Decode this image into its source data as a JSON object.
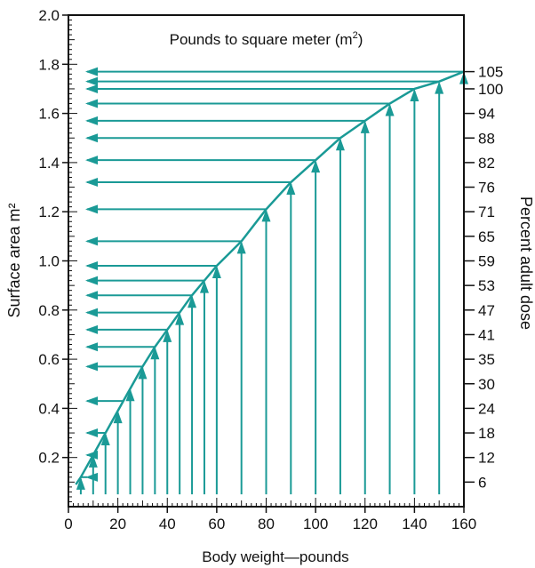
{
  "chart_data": {
    "type": "line",
    "title": "Pounds to square meter (m",
    "title_superscript": "2",
    "title_close": ")",
    "xlabel": "Body weight—pounds",
    "ylabel": "Surface area m²",
    "y2label": "Percent adult dose",
    "xlim": [
      0,
      160
    ],
    "ylim": [
      0,
      2.0
    ],
    "x_ticks": [
      0,
      20,
      40,
      60,
      80,
      100,
      120,
      140,
      160
    ],
    "y_ticks": [
      "0.2",
      "0.4",
      "0.6",
      "0.8",
      "1.0",
      "1.2",
      "1.4",
      "1.6",
      "1.8",
      "2.0"
    ],
    "y2_ticks": [
      {
        "label": "6",
        "y": 0.1
      },
      {
        "label": "12",
        "y": 0.2
      },
      {
        "label": "18",
        "y": 0.3
      },
      {
        "label": "24",
        "y": 0.4
      },
      {
        "label": "30",
        "y": 0.5
      },
      {
        "label": "35",
        "y": 0.6
      },
      {
        "label": "41",
        "y": 0.7
      },
      {
        "label": "47",
        "y": 0.8
      },
      {
        "label": "53",
        "y": 0.9
      },
      {
        "label": "59",
        "y": 1.0
      },
      {
        "label": "65",
        "y": 1.1
      },
      {
        "label": "71",
        "y": 1.2
      },
      {
        "label": "76",
        "y": 1.3
      },
      {
        "label": "82",
        "y": 1.4
      },
      {
        "label": "88",
        "y": 1.5
      },
      {
        "label": "94",
        "y": 1.6
      },
      {
        "label": "100",
        "y": 1.7
      },
      {
        "label": "105",
        "y": 1.77
      }
    ],
    "series": [
      {
        "x": [
          3,
          5,
          10,
          15,
          20,
          25,
          30,
          35,
          40,
          45,
          50,
          55,
          60,
          70,
          80,
          90,
          100,
          110,
          120,
          130,
          140,
          150,
          160
        ],
        "y": [
          0.09,
          0.12,
          0.21,
          0.3,
          0.39,
          0.48,
          0.57,
          0.65,
          0.72,
          0.79,
          0.86,
          0.92,
          0.98,
          1.08,
          1.21,
          1.32,
          1.41,
          1.5,
          1.57,
          1.64,
          1.7,
          1.73,
          1.77
        ]
      }
    ],
    "vertical_arrows_x": [
      5,
      10,
      15,
      20,
      25,
      30,
      35,
      40,
      45,
      50,
      55,
      60,
      70,
      80,
      90,
      100,
      110,
      120,
      130,
      140,
      150,
      160
    ],
    "horizontal_arrows_y": [
      0.12,
      0.21,
      0.3,
      0.43,
      0.57,
      0.65,
      0.72,
      0.79,
      0.86,
      0.92,
      0.98,
      1.08,
      1.21,
      1.32,
      1.41,
      1.5,
      1.57,
      1.64,
      1.7,
      1.73,
      1.77
    ],
    "colors": {
      "curve": "#1a9a96",
      "axis": "#111111",
      "text": "#111111"
    },
    "grid": false
  }
}
